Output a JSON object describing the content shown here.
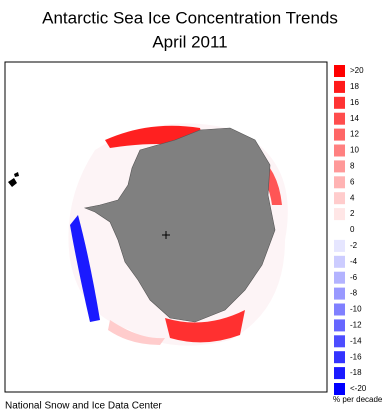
{
  "title": [
    "Antarctic Sea Ice Concentration Trends",
    "April 2011"
  ],
  "legend": {
    "entries": [
      {
        "label": ">20",
        "color": "#ff0000"
      },
      {
        "label": "18",
        "color": "#ff1a1a"
      },
      {
        "label": "16",
        "color": "#ff3333"
      },
      {
        "label": "14",
        "color": "#ff4d4d"
      },
      {
        "label": "12",
        "color": "#ff6666"
      },
      {
        "label": "10",
        "color": "#ff8080"
      },
      {
        "label": "8",
        "color": "#ff9999"
      },
      {
        "label": "6",
        "color": "#ffb3b3"
      },
      {
        "label": "4",
        "color": "#ffcccc"
      },
      {
        "label": "2",
        "color": "#ffe6e6"
      },
      {
        "label": "0",
        "color": "#ffffff"
      },
      {
        "label": "-2",
        "color": "#e6e6ff"
      },
      {
        "label": "-4",
        "color": "#ccccff"
      },
      {
        "label": "-6",
        "color": "#b3b3ff"
      },
      {
        "label": "-8",
        "color": "#9999ff"
      },
      {
        "label": "-10",
        "color": "#8080ff"
      },
      {
        "label": "-12",
        "color": "#6666ff"
      },
      {
        "label": "-14",
        "color": "#4d4dff"
      },
      {
        "label": "-16",
        "color": "#3333ff"
      },
      {
        "label": "-18",
        "color": "#1a1aff"
      },
      {
        "label": "<-20",
        "color": "#0000ff"
      }
    ],
    "unit": "% per decade"
  },
  "credit": "National Snow and Ice Data Center"
}
